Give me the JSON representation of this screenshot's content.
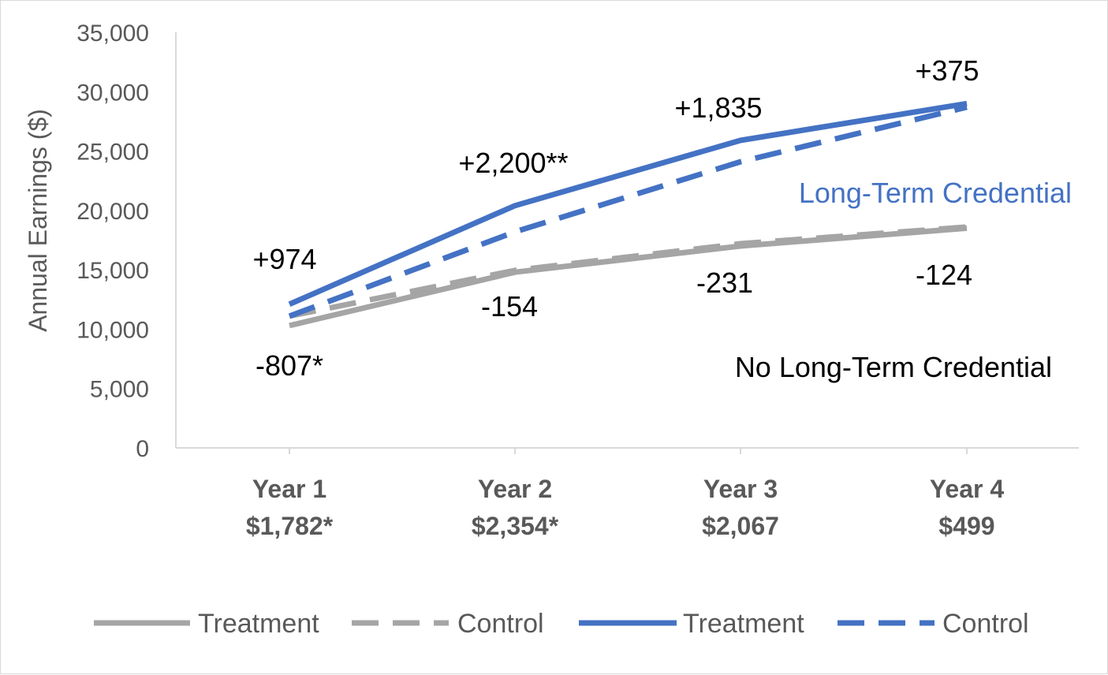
{
  "chart_data": {
    "type": "line",
    "title": "",
    "ylabel": "Annual Earnings ($)",
    "xlabel": "",
    "ylim": [
      0,
      35000
    ],
    "yticks": [
      0,
      5000,
      10000,
      15000,
      20000,
      25000,
      30000,
      35000
    ],
    "ytick_labels": [
      "0",
      "5,000",
      "10,000",
      "15,000",
      "20,000",
      "25,000",
      "30,000",
      "35,000"
    ],
    "grid": false,
    "categories": [
      {
        "year": "Year 1",
        "impact": "$1,782*"
      },
      {
        "year": "Year 2",
        "impact": "$2,354*"
      },
      {
        "year": "Year 3",
        "impact": "$2,067"
      },
      {
        "year": "Year 4",
        "impact": "$499"
      }
    ],
    "series": [
      {
        "name": "Treatment",
        "group": "no_credential",
        "style": "solid",
        "color": "#a5a5a5",
        "values": [
          10300,
          14800,
          17000,
          18500
        ]
      },
      {
        "name": "Control",
        "group": "no_credential",
        "style": "dashed",
        "color": "#a5a5a5",
        "values": [
          11100,
          14950,
          17200,
          18600
        ]
      },
      {
        "name": "Treatment",
        "group": "credential",
        "style": "solid",
        "color": "#4472c4",
        "values": [
          12100,
          20400,
          25900,
          29000
        ]
      },
      {
        "name": "Control",
        "group": "credential",
        "style": "dashed",
        "color": "#4472c4",
        "values": [
          11100,
          18200,
          24100,
          28700
        ]
      }
    ],
    "group_labels": {
      "credential": {
        "text": "Long-Term Credential",
        "color": "#4472c4"
      },
      "no_credential": {
        "text": "No Long-Term Credential",
        "color": "#000000"
      }
    },
    "annotations": {
      "credential": [
        "+974",
        "+2,200**",
        "+1,835",
        "+375"
      ],
      "no_credential": [
        "-807*",
        "-154",
        "-231",
        "-124"
      ]
    },
    "legend_position": "bottom"
  }
}
